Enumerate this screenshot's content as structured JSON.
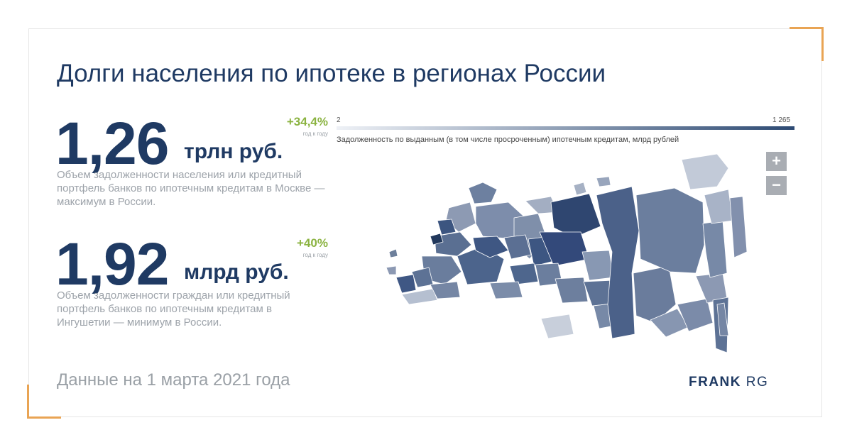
{
  "title": "Долги населения по ипотеке в регионах России",
  "stat1": {
    "value": "1,26",
    "unit": "трлн руб.",
    "growth": "+34,4%",
    "growth_label": "год к году",
    "description": "Объем задолженности населения или кредитный портфель банков по ипотечным кредитам в Москве — максимум в России."
  },
  "stat2": {
    "value": "1,92",
    "unit": "млрд руб.",
    "growth": "+40%",
    "growth_label": "год к году",
    "description": "Объем задолженности граждан или кредитный портфель банков по ипотечным кредитам в Ингушетии — минимум в России."
  },
  "legend": {
    "min": "2",
    "max": "1 265",
    "caption": "Задолженность по выданным (в том числе просроченным) ипотечным кредитам, млрд рублей",
    "color_min": "#eef1f6",
    "color_max": "#2d4a73"
  },
  "zoom": {
    "in": "+",
    "out": "−"
  },
  "footer": "Данные на 1 марта 2021 года",
  "brand": {
    "part1": "FRANK",
    "part2": "RG"
  },
  "colors": {
    "accent": "#e9a454",
    "primary": "#1f3a63",
    "growth": "#8bb341"
  }
}
